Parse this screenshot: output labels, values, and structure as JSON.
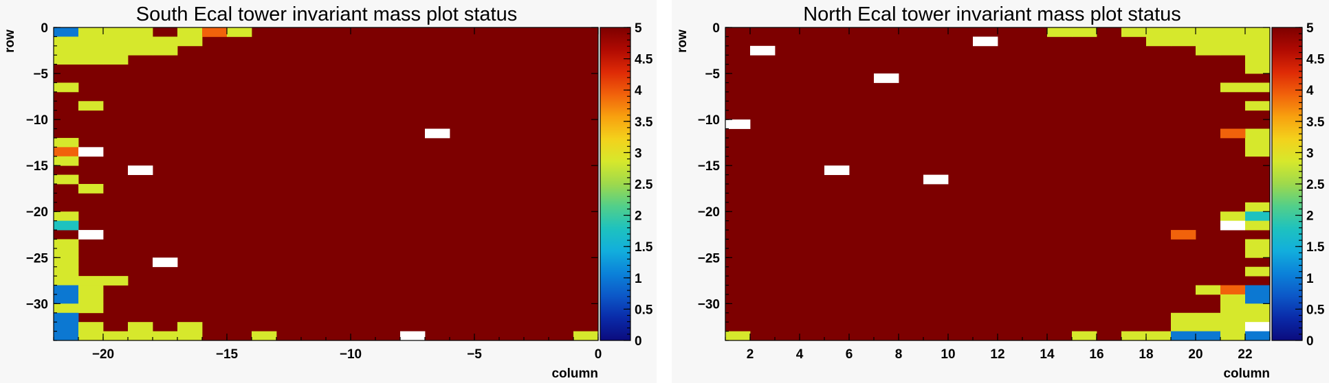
{
  "palette": [
    "#0b0b7e",
    "#0a2aa8",
    "#0c58c8",
    "#0b82d9",
    "#12aedc",
    "#1ec2bf",
    "#52cf8a",
    "#9ed94c",
    "#d6e82c",
    "#f3d21c",
    "#f8a10f",
    "#f1620b",
    "#de2a06",
    "#b00a02",
    "#7d0000"
  ],
  "empty_color": "#ffffff",
  "chart_data": [
    {
      "name": "south",
      "type": "heatmap",
      "title": "South Ecal tower invariant mass plot status",
      "xlabel": "column",
      "ylabel": "row",
      "xlim": [
        -22,
        0
      ],
      "ylim": [
        -34,
        0
      ],
      "zlim": [
        0,
        5
      ],
      "xticks": [
        -20,
        -15,
        -10,
        -5,
        0
      ],
      "xtick_labels": [
        "−20",
        "−15",
        "−10",
        "−5",
        "0"
      ],
      "yticks": [
        0,
        -5,
        -10,
        -15,
        -20,
        -25,
        -30
      ],
      "ytick_labels": [
        "0",
        "−5",
        "−10",
        "−15",
        "−20",
        "−25",
        "−30"
      ],
      "zticks": [
        0,
        0.5,
        1,
        1.5,
        2,
        2.5,
        3,
        3.5,
        4,
        4.5,
        5
      ],
      "ztick_labels": [
        "0",
        "0.5",
        "1",
        "1.5",
        "2",
        "2.5",
        "3",
        "3.5",
        "4",
        "4.5",
        "5"
      ],
      "default_value": 5,
      "cells": [
        {
          "x": -22,
          "y": -1,
          "v": 1
        },
        {
          "x": -21,
          "y": -1,
          "v": 3
        },
        {
          "x": -20,
          "y": -1,
          "v": 3
        },
        {
          "x": -19,
          "y": -1,
          "v": 3
        },
        {
          "x": -17,
          "y": -1,
          "v": 3
        },
        {
          "x": -16,
          "y": -1,
          "v": 4
        },
        {
          "x": -15,
          "y": -1,
          "v": 3
        },
        {
          "x": -22,
          "y": -2,
          "v": 3
        },
        {
          "x": -21,
          "y": -2,
          "v": 3
        },
        {
          "x": -20,
          "y": -2,
          "v": 3
        },
        {
          "x": -19,
          "y": -2,
          "v": 3
        },
        {
          "x": -18,
          "y": -2,
          "v": 3
        },
        {
          "x": -17,
          "y": -2,
          "v": 3
        },
        {
          "x": -22,
          "y": -3,
          "v": 3
        },
        {
          "x": -21,
          "y": -3,
          "v": 3
        },
        {
          "x": -20,
          "y": -3,
          "v": 3
        },
        {
          "x": -19,
          "y": -3,
          "v": 3
        },
        {
          "x": -18,
          "y": -3,
          "v": 3
        },
        {
          "x": -22,
          "y": -4,
          "v": 3
        },
        {
          "x": -21,
          "y": -4,
          "v": 3
        },
        {
          "x": -20,
          "y": -4,
          "v": 3
        },
        {
          "x": -22,
          "y": -7,
          "v": 3
        },
        {
          "x": -21,
          "y": -9,
          "v": 3
        },
        {
          "x": -22,
          "y": -13,
          "v": 3
        },
        {
          "x": -22,
          "y": -14,
          "v": 4
        },
        {
          "x": -21,
          "y": -14,
          "v": null
        },
        {
          "x": -22,
          "y": -15,
          "v": 3
        },
        {
          "x": -19,
          "y": -16,
          "v": null
        },
        {
          "x": -22,
          "y": -17,
          "v": 3
        },
        {
          "x": -21,
          "y": -18,
          "v": 3
        },
        {
          "x": -22,
          "y": -21,
          "v": 3
        },
        {
          "x": -22,
          "y": -22,
          "v": 2
        },
        {
          "x": -21,
          "y": -23,
          "v": null
        },
        {
          "x": -22,
          "y": -24,
          "v": 3
        },
        {
          "x": -22,
          "y": -25,
          "v": 3
        },
        {
          "x": -22,
          "y": -26,
          "v": 3
        },
        {
          "x": -18,
          "y": -26,
          "v": null
        },
        {
          "x": -22,
          "y": -27,
          "v": 3
        },
        {
          "x": -22,
          "y": -28,
          "v": 3
        },
        {
          "x": -21,
          "y": -28,
          "v": 3
        },
        {
          "x": -20,
          "y": -28,
          "v": 3
        },
        {
          "x": -22,
          "y": -29,
          "v": 1
        },
        {
          "x": -21,
          "y": -29,
          "v": 3
        },
        {
          "x": -22,
          "y": -30,
          "v": 1
        },
        {
          "x": -21,
          "y": -30,
          "v": 3
        },
        {
          "x": -22,
          "y": -31,
          "v": 3
        },
        {
          "x": -21,
          "y": -31,
          "v": 3
        },
        {
          "x": -22,
          "y": -32,
          "v": 1
        },
        {
          "x": -22,
          "y": -33,
          "v": 1
        },
        {
          "x": -21,
          "y": -33,
          "v": 3
        },
        {
          "x": -19,
          "y": -33,
          "v": 3
        },
        {
          "x": -17,
          "y": -33,
          "v": 3
        },
        {
          "x": -22,
          "y": -34,
          "v": 1
        },
        {
          "x": -21,
          "y": -34,
          "v": 3
        },
        {
          "x": -20,
          "y": -34,
          "v": 3
        },
        {
          "x": -19,
          "y": -34,
          "v": 3
        },
        {
          "x": -18,
          "y": -34,
          "v": 3
        },
        {
          "x": -17,
          "y": -34,
          "v": 3
        },
        {
          "x": -14,
          "y": -34,
          "v": 3
        },
        {
          "x": -7,
          "y": -12,
          "v": null
        },
        {
          "x": -8,
          "y": -34,
          "v": null
        },
        {
          "x": -1,
          "y": -34,
          "v": 3
        }
      ]
    },
    {
      "name": "north",
      "type": "heatmap",
      "title": "North Ecal tower invariant mass plot status",
      "xlabel": "column",
      "ylabel": "row",
      "xlim": [
        1,
        23
      ],
      "ylim": [
        -34,
        0
      ],
      "zlim": [
        0,
        5
      ],
      "xticks": [
        2,
        4,
        6,
        8,
        10,
        12,
        14,
        16,
        18,
        20,
        22
      ],
      "xtick_labels": [
        "2",
        "4",
        "6",
        "8",
        "10",
        "12",
        "14",
        "16",
        "18",
        "20",
        "22"
      ],
      "yticks": [
        0,
        -5,
        -10,
        -15,
        -20,
        -25,
        -30
      ],
      "ytick_labels": [
        "0",
        "−5",
        "−10",
        "−15",
        "−20",
        "−25",
        "−30"
      ],
      "zticks": [
        0,
        0.5,
        1,
        1.5,
        2,
        2.5,
        3,
        3.5,
        4,
        4.5,
        5
      ],
      "ztick_labels": [
        "0",
        "0.5",
        "1",
        "1.5",
        "2",
        "2.5",
        "3",
        "3.5",
        "4",
        "4.5",
        "5"
      ],
      "default_value": 5,
      "cells": [
        {
          "x": 14,
          "y": -1,
          "v": 3
        },
        {
          "x": 15,
          "y": -1,
          "v": 3
        },
        {
          "x": 17,
          "y": -1,
          "v": 3
        },
        {
          "x": 18,
          "y": -1,
          "v": 3
        },
        {
          "x": 19,
          "y": -1,
          "v": 3
        },
        {
          "x": 20,
          "y": -1,
          "v": 3
        },
        {
          "x": 21,
          "y": -1,
          "v": 3
        },
        {
          "x": 22,
          "y": -1,
          "v": 3
        },
        {
          "x": 18,
          "y": -2,
          "v": 3
        },
        {
          "x": 19,
          "y": -2,
          "v": 3
        },
        {
          "x": 20,
          "y": -2,
          "v": 3
        },
        {
          "x": 21,
          "y": -2,
          "v": 3
        },
        {
          "x": 22,
          "y": -2,
          "v": 3
        },
        {
          "x": 20,
          "y": -3,
          "v": 3
        },
        {
          "x": 21,
          "y": -3,
          "v": 3
        },
        {
          "x": 22,
          "y": -3,
          "v": 3
        },
        {
          "x": 22,
          "y": -4,
          "v": 3
        },
        {
          "x": 22,
          "y": -5,
          "v": 3
        },
        {
          "x": 21,
          "y": -7,
          "v": 3
        },
        {
          "x": 22,
          "y": -7,
          "v": 3
        },
        {
          "x": 22,
          "y": -9,
          "v": 3
        },
        {
          "x": 22,
          "y": -12,
          "v": 3
        },
        {
          "x": 21,
          "y": -12,
          "v": 4
        },
        {
          "x": 22,
          "y": -13,
          "v": 3
        },
        {
          "x": 22,
          "y": -14,
          "v": 3
        },
        {
          "x": 22,
          "y": -20,
          "v": 3
        },
        {
          "x": 21,
          "y": -21,
          "v": 3
        },
        {
          "x": 22,
          "y": -21,
          "v": 2
        },
        {
          "x": 21,
          "y": -22,
          "v": null
        },
        {
          "x": 22,
          "y": -22,
          "v": 3
        },
        {
          "x": 19,
          "y": -23,
          "v": 4
        },
        {
          "x": 22,
          "y": -24,
          "v": 3
        },
        {
          "x": 22,
          "y": -25,
          "v": 3
        },
        {
          "x": 22,
          "y": -27,
          "v": 3
        },
        {
          "x": 20,
          "y": -29,
          "v": 3
        },
        {
          "x": 21,
          "y": -29,
          "v": 4
        },
        {
          "x": 22,
          "y": -29,
          "v": 1
        },
        {
          "x": 21,
          "y": -30,
          "v": 3
        },
        {
          "x": 22,
          "y": -30,
          "v": 1
        },
        {
          "x": 21,
          "y": -31,
          "v": 3
        },
        {
          "x": 22,
          "y": -31,
          "v": 3
        },
        {
          "x": 19,
          "y": -32,
          "v": 3
        },
        {
          "x": 20,
          "y": -32,
          "v": 3
        },
        {
          "x": 21,
          "y": -32,
          "v": 3
        },
        {
          "x": 22,
          "y": -32,
          "v": 3
        },
        {
          "x": 19,
          "y": -33,
          "v": 3
        },
        {
          "x": 20,
          "y": -33,
          "v": 3
        },
        {
          "x": 21,
          "y": -33,
          "v": 3
        },
        {
          "x": 22,
          "y": -33,
          "v": null
        },
        {
          "x": 1,
          "y": -34,
          "v": 3
        },
        {
          "x": 15,
          "y": -34,
          "v": 3
        },
        {
          "x": 17,
          "y": -34,
          "v": 3
        },
        {
          "x": 18,
          "y": -34,
          "v": 3
        },
        {
          "x": 19,
          "y": -34,
          "v": 1
        },
        {
          "x": 20,
          "y": -34,
          "v": 1
        },
        {
          "x": 21,
          "y": -34,
          "v": 3
        },
        {
          "x": 22,
          "y": -34,
          "v": 1
        },
        {
          "x": 2,
          "y": -3,
          "v": null
        },
        {
          "x": 11,
          "y": -2,
          "v": null
        },
        {
          "x": 7,
          "y": -6,
          "v": null
        },
        {
          "x": 1,
          "y": -11,
          "v": null
        },
        {
          "x": 5,
          "y": -16,
          "v": null
        },
        {
          "x": 9,
          "y": -17,
          "v": null
        }
      ]
    }
  ]
}
